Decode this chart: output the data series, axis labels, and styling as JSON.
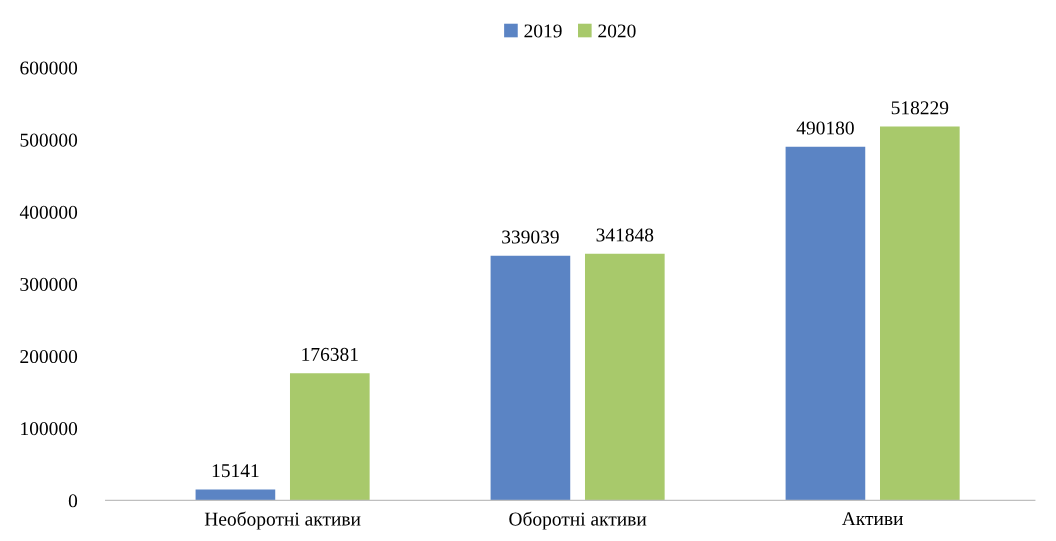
{
  "chart_data": {
    "type": "bar",
    "categories": [
      "Необоротні активи",
      "Оборотні активи",
      "Активи"
    ],
    "series": [
      {
        "name": "2019",
        "color": "#5b84c4",
        "values": [
          15141,
          339039,
          490180
        ]
      },
      {
        "name": "2020",
        "color": "#a8c96b",
        "values": [
          176381,
          341848,
          518229
        ]
      }
    ],
    "ylim": [
      0,
      600000
    ],
    "yticks": [
      0,
      100000,
      200000,
      300000,
      400000,
      500000,
      600000
    ],
    "data_labels": true,
    "grid": false,
    "legend": "top"
  }
}
